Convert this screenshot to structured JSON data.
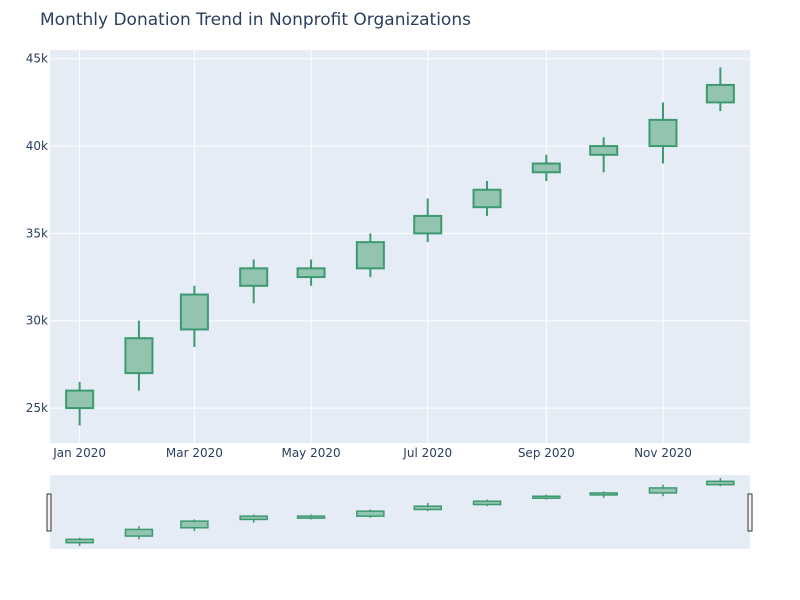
{
  "chart_data": {
    "type": "candlestick",
    "title": "Monthly Donation Trend in Nonprofit Organizations",
    "x": [
      "2020-01-01",
      "2020-02-01",
      "2020-03-01",
      "2020-04-01",
      "2020-05-01",
      "2020-06-01",
      "2020-07-01",
      "2020-08-01",
      "2020-09-01",
      "2020-10-01",
      "2020-11-01",
      "2020-12-01"
    ],
    "open": [
      25000,
      27000,
      29500,
      32000,
      32500,
      33000,
      35000,
      36500,
      38500,
      39500,
      40000,
      42500
    ],
    "high": [
      26500,
      30000,
      32000,
      33500,
      33500,
      35000,
      37000,
      38000,
      39500,
      40500,
      42500,
      44500
    ],
    "low": [
      24000,
      26000,
      28500,
      31000,
      32000,
      32500,
      34500,
      36000,
      38000,
      38500,
      39000,
      42000
    ],
    "close": [
      26000,
      29000,
      31500,
      33000,
      33000,
      34500,
      36000,
      37500,
      39000,
      40000,
      41500,
      43500
    ],
    "xlabel": "",
    "ylabel": "",
    "ylim": [
      23000,
      45500
    ],
    "yticks": [
      {
        "value": 25000,
        "label": "25k"
      },
      {
        "value": 30000,
        "label": "30k"
      },
      {
        "value": 35000,
        "label": "35k"
      },
      {
        "value": 40000,
        "label": "40k"
      },
      {
        "value": 45000,
        "label": "45k"
      }
    ],
    "xticks": [
      {
        "value": "2020-01-01",
        "label": "Jan 2020"
      },
      {
        "value": "2020-03-01",
        "label": "Mar 2020"
      },
      {
        "value": "2020-05-01",
        "label": "May 2020"
      },
      {
        "value": "2020-07-01",
        "label": "Jul 2020"
      },
      {
        "value": "2020-09-01",
        "label": "Sep 2020"
      },
      {
        "value": "2020-11-01",
        "label": "Nov 2020"
      }
    ],
    "grid": true,
    "range_slider": true,
    "colors": {
      "increasing_line": "#3d9970",
      "increasing_fill": "#93c4b0",
      "plot_bg": "#e5ecf6",
      "grid": "#ffffff",
      "text": "#2a3f5f"
    }
  }
}
